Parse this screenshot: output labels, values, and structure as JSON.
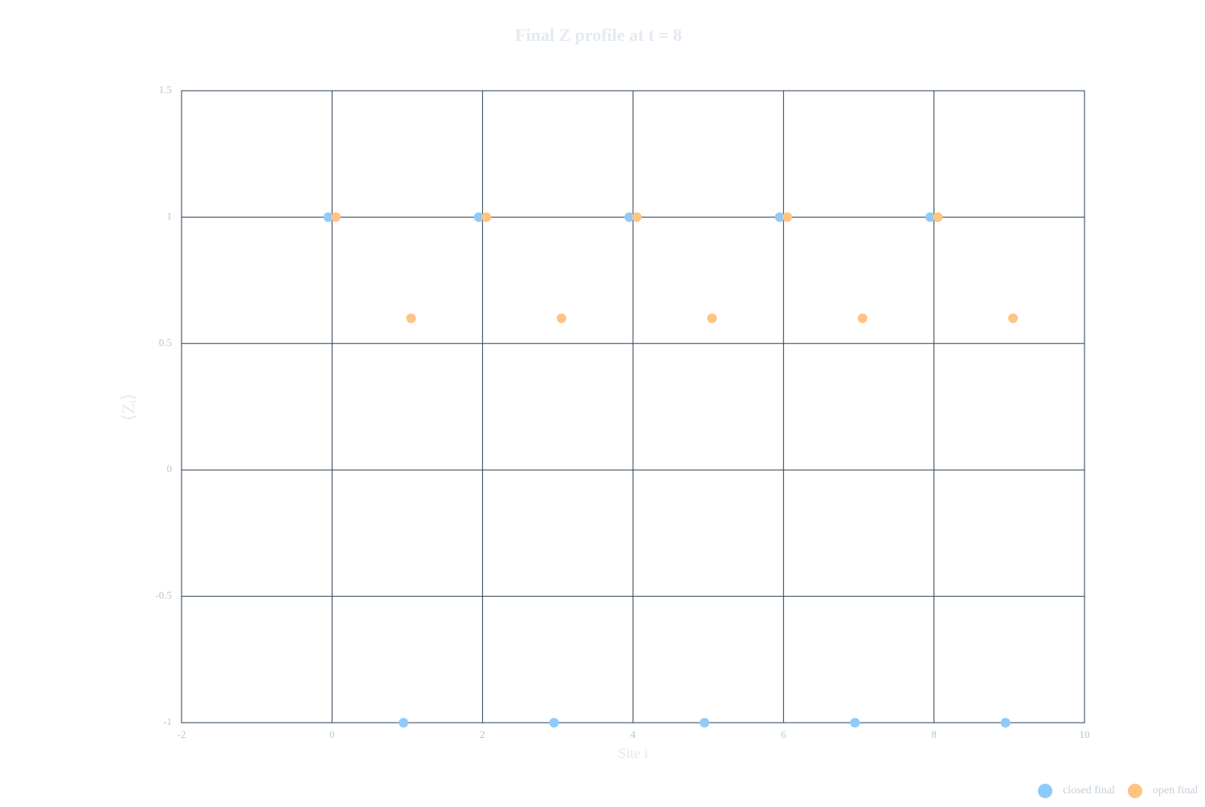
{
  "chart_data": {
    "type": "scatter",
    "title": "Final Z profile at t = 8",
    "x_label": "Site i",
    "y_label": "⟨Zᵢ⟩",
    "series": [
      {
        "name": "closed final",
        "color": "#90caf9",
        "x": [
          -0.05,
          0.95,
          1.95,
          2.95,
          3.95,
          4.95,
          5.95,
          6.95,
          7.95,
          8.95
        ],
        "values": [
          1,
          -1,
          1,
          -1,
          1,
          -1,
          1,
          -1,
          1,
          -1
        ]
      },
      {
        "name": "open final",
        "color": "#ffc482",
        "x": [
          0.05,
          1.05,
          2.05,
          3.05,
          4.05,
          5.05,
          6.05,
          7.05,
          8.05,
          9.05
        ],
        "values": [
          1,
          0.6,
          1,
          0.6,
          1,
          0.6,
          1,
          0.6,
          1,
          0.6
        ]
      }
    ],
    "xlim": [
      -2,
      10
    ],
    "xticks": [
      -2,
      0,
      2,
      4,
      6,
      8,
      10
    ],
    "ylim": [
      -1,
      1.5
    ],
    "yticks": [
      -1,
      -0.5,
      0,
      0.5,
      1,
      1.5
    ],
    "grid": true,
    "legend": "lower right"
  }
}
